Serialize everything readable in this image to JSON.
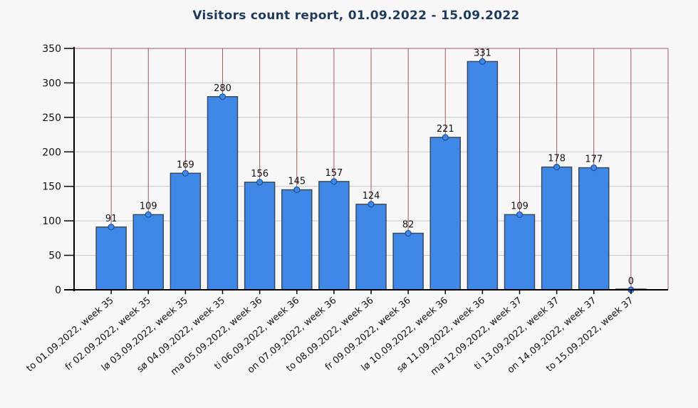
{
  "chart_data": {
    "type": "bar",
    "title": "Visitors count report,  01.09.2022 - 15.09.2022",
    "xlabel": "",
    "ylabel": "",
    "ylim": [
      0,
      350
    ],
    "yticks": [
      0,
      50,
      100,
      150,
      200,
      250,
      300,
      350
    ],
    "grid": true,
    "categories": [
      "to 01.09.2022,  week 35",
      "fr 02.09.2022,  week 35",
      "lø 03.09.2022,  week 35",
      "sø 04.09.2022,  week 35",
      "ma 05.09.2022,  week 36",
      "ti 06.09.2022,  week 36",
      "on 07.09.2022,  week 36",
      "to 08.09.2022,  week 36",
      "fr 09.09.2022,  week 36",
      "lø 10.09.2022,  week 36",
      "sø 11.09.2022,  week 36",
      "ma 12.09.2022,  week 37",
      "ti 13.09.2022,  week 37",
      "on 14.09.2022,  week 37",
      "to 15.09.2022,  week 37"
    ],
    "values": [
      91,
      109,
      169,
      280,
      156,
      145,
      157,
      124,
      82,
      221,
      331,
      109,
      178,
      177,
      0
    ],
    "colors": {
      "bar": "#3f88e8",
      "bar_edge": "#3a4a5c",
      "vertical_grid": "#a05a5a",
      "horizontal_grid": "#c8c8c8",
      "marker": "#3f88e8"
    }
  }
}
